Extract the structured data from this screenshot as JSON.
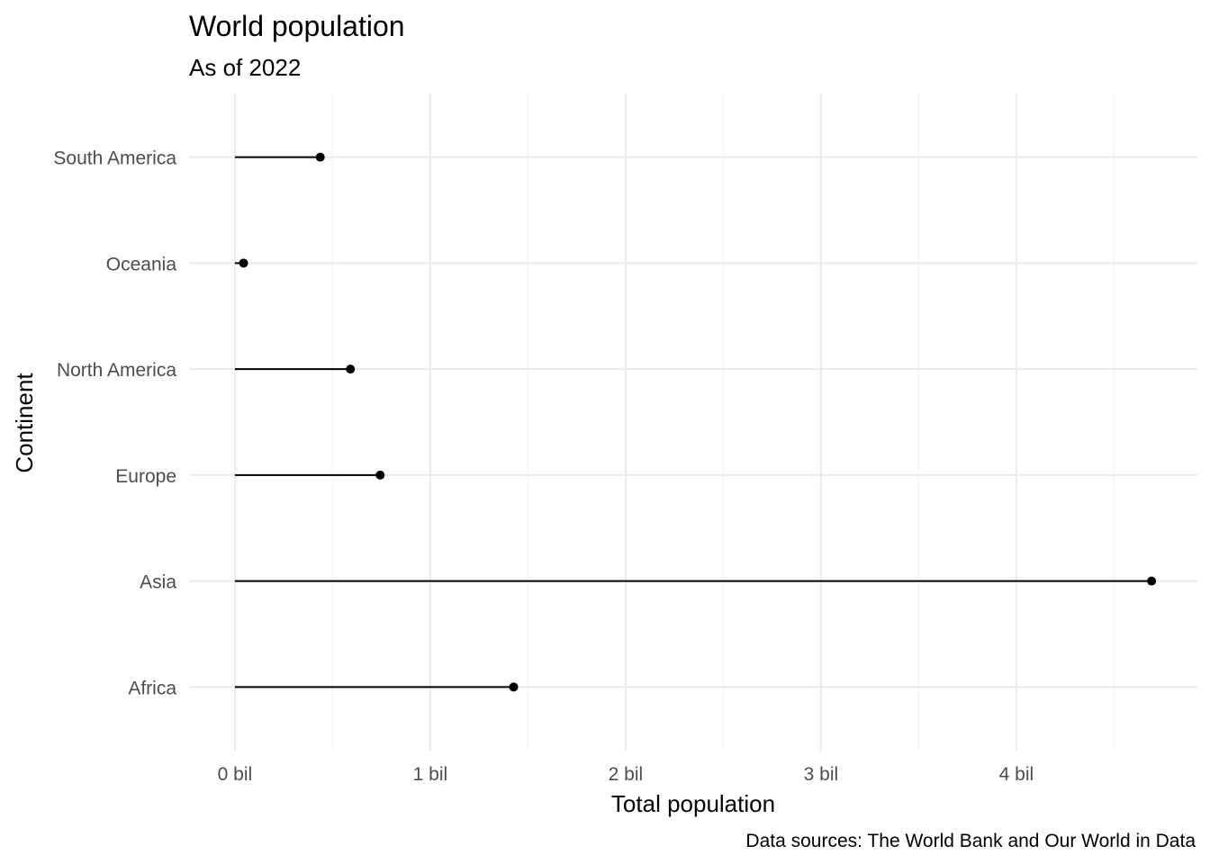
{
  "chart_data": {
    "type": "lollipop",
    "title": "World population",
    "subtitle": "As of 2022",
    "xlabel": "Total population",
    "ylabel": "Continent",
    "caption": "Data sources: The World Bank and Our World in Data",
    "categories": [
      "Africa",
      "Asia",
      "Europe",
      "North America",
      "Oceania",
      "South America"
    ],
    "values": [
      1426736614,
      4692135542,
      743619310,
      591242088,
      44491724,
      436816608
    ],
    "x_ticks": [
      0,
      1000000000,
      2000000000,
      3000000000,
      4000000000
    ],
    "x_tick_labels": [
      "0 bil",
      "1 bil",
      "2 bil",
      "3 bil",
      "4 bil"
    ],
    "xlim": [
      -234606777,
      4926742319
    ],
    "grid": true,
    "colors": {
      "stem": "#000000",
      "point": "#000000",
      "grid": "#ebebeb"
    }
  }
}
